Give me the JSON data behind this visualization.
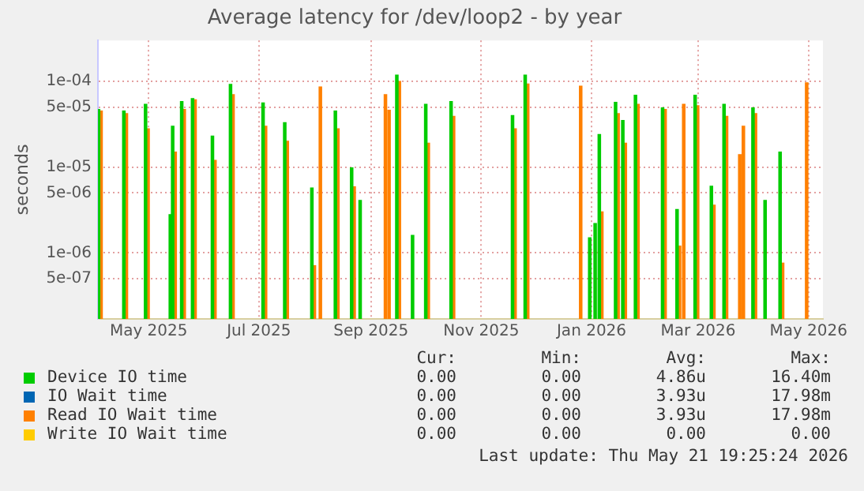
{
  "chart_data": {
    "type": "bar",
    "title": "Average latency for /dev/loop2 - by year",
    "ylabel": "seconds",
    "x": [
      "2025-04-04",
      "2025-04-18",
      "2025-04-30",
      "2025-05-13",
      "2025-05-15",
      "2025-05-20",
      "2025-05-26",
      "2025-06-06",
      "2025-06-16",
      "2025-07-04",
      "2025-07-16",
      "2025-07-31",
      "2025-08-04",
      "2025-08-13",
      "2025-08-22",
      "2025-08-26",
      "2025-09-09",
      "2025-09-11",
      "2025-09-16",
      "2025-09-24",
      "2025-10-02",
      "2025-10-16",
      "2025-11-19",
      "2025-11-26",
      "2025-12-26",
      "2025-12-31",
      "2026-01-03",
      "2026-01-06",
      "2026-01-15",
      "2026-01-19",
      "2026-01-26",
      "2026-02-10",
      "2026-02-18",
      "2026-02-21",
      "2026-02-28",
      "2026-03-09",
      "2026-03-16",
      "2026-03-24",
      "2026-03-26",
      "2026-04-01",
      "2026-04-07",
      "2026-04-16",
      "2026-04-30"
    ],
    "series": [
      {
        "name": "Device IO time",
        "color": "#00cc00",
        "values": [
          4.7e-05,
          4.5e-05,
          5.4e-05,
          2.8e-06,
          3e-05,
          5.8e-05,
          6.3e-05,
          2.3e-05,
          9.2e-05,
          5.6e-05,
          3.3e-05,
          5.7e-06,
          null,
          4.5e-05,
          9.8e-06,
          4.1e-06,
          null,
          null,
          0.000118,
          1.6e-06,
          5.4e-05,
          5.8e-05,
          4e-05,
          0.000118,
          null,
          1.5e-06,
          2.2e-06,
          2.4e-05,
          5.7e-05,
          3.5e-05,
          6.9e-05,
          4.9e-05,
          3.2e-06,
          null,
          6.9e-05,
          6e-06,
          5.4e-05,
          null,
          null,
          4.9e-05,
          4.1e-06,
          1.5e-05,
          null
        ]
      },
      {
        "name": "IO Wait time",
        "color": "#0066b3",
        "values": [
          null,
          null,
          null,
          null,
          null,
          null,
          null,
          null,
          null,
          null,
          null,
          null,
          null,
          null,
          null,
          null,
          null,
          null,
          null,
          null,
          null,
          null,
          null,
          null,
          null,
          null,
          null,
          null,
          null,
          null,
          null,
          null,
          null,
          null,
          null,
          null,
          null,
          null,
          null,
          null,
          null,
          null,
          null
        ]
      },
      {
        "name": "Read IO Wait time",
        "color": "#ff8000",
        "values": [
          4.5e-05,
          4.2e-05,
          2.8e-05,
          null,
          1.5e-05,
          4.7e-05,
          6.1e-05,
          1.2e-05,
          7e-05,
          3e-05,
          2e-05,
          7.1e-07,
          8.6e-05,
          2.8e-05,
          5.9e-06,
          null,
          7e-05,
          4.6e-05,
          0.0001,
          null,
          1.9e-05,
          3.9e-05,
          2.8e-05,
          9.3e-05,
          8.8e-05,
          null,
          null,
          3e-06,
          4.2e-05,
          1.9e-05,
          5.4e-05,
          4.7e-05,
          1.2e-06,
          5.4e-05,
          5.2e-05,
          3.6e-06,
          3.9e-05,
          1.4e-05,
          3e-05,
          4.2e-05,
          null,
          7.6e-07,
          9.6e-05
        ]
      },
      {
        "name": "Write IO Wait time",
        "color": "#ffcc00",
        "values": [
          null,
          null,
          null,
          null,
          null,
          null,
          null,
          null,
          null,
          null,
          null,
          null,
          null,
          null,
          null,
          null,
          null,
          null,
          null,
          null,
          null,
          null,
          null,
          null,
          null,
          null,
          null,
          null,
          null,
          null,
          null,
          null,
          null,
          null,
          null,
          null,
          null,
          null,
          null,
          null,
          null,
          null,
          null
        ]
      }
    ],
    "xlim": [
      "2025-04-03",
      "2026-05-09"
    ],
    "xticks": [
      {
        "value": "2025-05-01",
        "label": "May 2025"
      },
      {
        "value": "2025-07-01",
        "label": "Jul 2025"
      },
      {
        "value": "2025-09-01",
        "label": "Sep 2025"
      },
      {
        "value": "2025-11-01",
        "label": "Nov 2025"
      },
      {
        "value": "2026-01-01",
        "label": "Jan 2026"
      },
      {
        "value": "2026-03-01",
        "label": "Mar 2026"
      },
      {
        "value": "2026-05-01",
        "label": "May 2026"
      }
    ],
    "ylim": [
      1.7e-07,
      0.0003
    ],
    "yticks": [
      {
        "value": 5e-07,
        "label": "5e-07"
      },
      {
        "value": 1e-06,
        "label": "1e-06"
      },
      {
        "value": 5e-06,
        "label": "5e-06"
      },
      {
        "value": 1e-05,
        "label": "1e-05"
      },
      {
        "value": 5e-05,
        "label": "5e-05"
      },
      {
        "value": 0.0001,
        "label": "1e-04"
      }
    ],
    "log": "y",
    "grid": true,
    "legend": "bottom",
    "annotations": [
      "Cur:",
      "Min:",
      "Avg:",
      "Max:",
      "0.00",
      "0.00",
      "4.86u",
      "16.40m",
      "0.00",
      "0.00",
      "3.93u",
      "17.98m",
      "0.00",
      "0.00",
      "3.93u",
      "17.98m",
      "0.00",
      "0.00",
      "0.00",
      "0.00",
      "Last update: Thu May 21 19:25:24 2026"
    ]
  }
}
